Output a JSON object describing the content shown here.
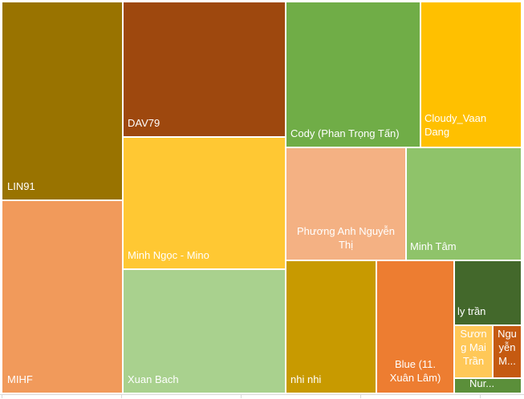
{
  "chart_data": {
    "type": "treemap",
    "title": "",
    "items": [
      {
        "name": "LIN91",
        "label": "LIN91",
        "value": 37.3,
        "color": "#997300"
      },
      {
        "name": "MIHF",
        "label": "MIHF",
        "value": 36.3,
        "color": "#F19A5B"
      },
      {
        "name": "DAV79",
        "label": "DAV79",
        "value": 34.0,
        "color": "#9E480E"
      },
      {
        "name": "Minh Ngọc - Mino",
        "label": "Minh Ngọc - Mino",
        "value": 32.9,
        "color": "#FFC833"
      },
      {
        "name": "Xuan Bach",
        "label": "Xuan Bach",
        "value": 31.5,
        "color": "#A9D18E"
      },
      {
        "name": "Cody (Phan Trọng Tấn)",
        "label": "Cody (Phan Trọng Tấn)",
        "value": 31.0,
        "color": "#70AD47"
      },
      {
        "name": "Cloudy_Vaan Dang",
        "label": "Cloudy_Vaan\nDang",
        "value": 22.9,
        "color": "#FFC000"
      },
      {
        "name": "Phương Anh Nguyễn Thị",
        "label": "Phương Anh Nguyễn\nThị",
        "value": 24.2,
        "color": "#F4B183"
      },
      {
        "name": "Minh Tâm",
        "label": "Minh Tâm",
        "value": 23.1,
        "color": "#8FC36A"
      },
      {
        "name": "nhi nhi",
        "label": "nhi nhi",
        "value": 18.6,
        "color": "#C89A00"
      },
      {
        "name": "Blue (11. Xuân Lâm)",
        "label": "Blue (11.\nXuân Lâm)",
        "value": 16.2,
        "color": "#ED7D31"
      },
      {
        "name": "ly trần",
        "label": "ly trần",
        "value": 7.3,
        "color": "#43682B"
      },
      {
        "name": "Sương Mai Trần",
        "label": "Sươn\ng Mai\nTrần",
        "value": 3.7,
        "color": "#FFC858"
      },
      {
        "name": "Nguyễn M...",
        "label": "Ngu\nyễn\nM...",
        "value": 2.9,
        "color": "#C55A11"
      },
      {
        "name": "Nur...",
        "label": "Nur...",
        "value": 1.2,
        "color": "#5B8F3A"
      }
    ]
  }
}
